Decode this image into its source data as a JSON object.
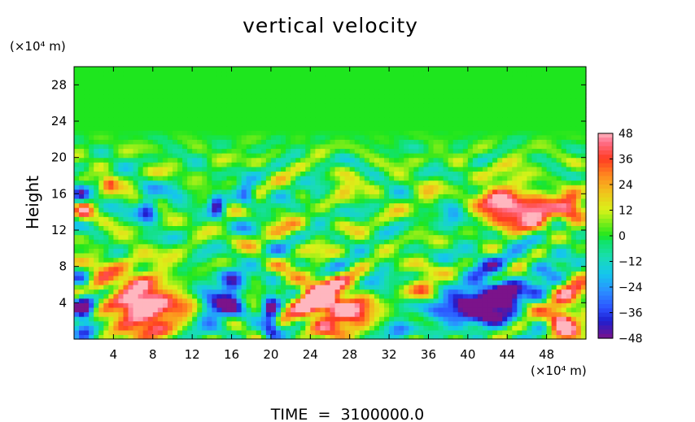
{
  "chart_data": {
    "type": "heatmap",
    "title": "vertical velocity",
    "ylabel": "Height",
    "y_unit": "(×10⁴ m)",
    "x_unit": "(×10⁴ m)",
    "xlim": [
      0,
      52
    ],
    "ylim": [
      0,
      30
    ],
    "x_ticks": [
      4,
      8,
      12,
      16,
      20,
      24,
      28,
      32,
      36,
      40,
      44,
      48
    ],
    "y_ticks": [
      4,
      8,
      12,
      16,
      20,
      24,
      28
    ],
    "colorbar": {
      "min": -48,
      "max": 48,
      "ticks": [
        48,
        36,
        24,
        12,
        0,
        -12,
        -24,
        -36,
        -48
      ],
      "tick_labels": [
        "48",
        "36",
        "24",
        "12",
        "0",
        "−12",
        "−24",
        "−36",
        "−48"
      ]
    },
    "grid": false,
    "footer": "TIME  =  3100000.0",
    "features": [
      {
        "x": 7.0,
        "y": 3.6,
        "sx": 2.3,
        "sy": 2.2,
        "v": 62
      },
      {
        "x": 26.0,
        "y": 3.6,
        "sx": 2.4,
        "sy": 1.8,
        "v": 54
      },
      {
        "x": 24.5,
        "y": 5.3,
        "sx": 1.3,
        "sy": 1.2,
        "v": 30
      },
      {
        "x": 49.5,
        "y": 2.4,
        "sx": 1.0,
        "sy": 1.4,
        "v": 54
      },
      {
        "x": 43.5,
        "y": 14.8,
        "sx": 1.7,
        "sy": 1.6,
        "v": 52
      },
      {
        "x": 47.0,
        "y": 14.0,
        "sx": 1.4,
        "sy": 1.2,
        "v": 46
      },
      {
        "x": 50.5,
        "y": 14.6,
        "sx": 1.0,
        "sy": 1.2,
        "v": 44
      },
      {
        "x": 41.5,
        "y": 4.0,
        "sx": 1.7,
        "sy": 1.8,
        "v": -62
      },
      {
        "x": 44.0,
        "y": 4.6,
        "sx": 1.0,
        "sy": 1.2,
        "v": -52
      },
      {
        "x": 20.0,
        "y": 2.6,
        "sx": 0.6,
        "sy": 2.0,
        "v": -48
      },
      {
        "x": 1.0,
        "y": 3.4,
        "sx": 0.8,
        "sy": 2.3,
        "v": -46
      },
      {
        "x": 16.0,
        "y": 5.2,
        "sx": 0.9,
        "sy": 1.6,
        "v": -46
      },
      {
        "x": 7.5,
        "y": 14.4,
        "sx": 0.7,
        "sy": 1.1,
        "v": -40
      },
      {
        "x": 14.5,
        "y": 14.7,
        "sx": 0.5,
        "sy": 1.0,
        "v": -40
      },
      {
        "x": 17.5,
        "y": 16.0,
        "sx": 0.6,
        "sy": 1.0,
        "v": -34
      },
      {
        "x": 38.0,
        "y": 3.2,
        "sx": 1.6,
        "sy": 1.0,
        "v": -38
      },
      {
        "x": 33.0,
        "y": 1.2,
        "sx": 0.9,
        "sy": 0.8,
        "v": -30
      },
      {
        "x": 14.0,
        "y": 3.2,
        "sx": 1.2,
        "sy": 1.6,
        "v": -34
      },
      {
        "x": 11.5,
        "y": 3.4,
        "sx": 1.2,
        "sy": 1.3,
        "v": 14
      },
      {
        "x": 2.0,
        "y": 6.5,
        "sx": 1.2,
        "sy": 1.2,
        "v": 24
      },
      {
        "x": 5.5,
        "y": 8.3,
        "sx": 2.5,
        "sy": 0.6,
        "v": 16
      },
      {
        "x": 29.0,
        "y": 2.5,
        "sx": 1.0,
        "sy": 1.0,
        "v": 20
      },
      {
        "x": 35.5,
        "y": 6.2,
        "sx": 1.0,
        "sy": 1.4,
        "v": 22
      },
      {
        "x": 51.0,
        "y": 5.2,
        "sx": 1.2,
        "sy": 2.0,
        "v": 20
      },
      {
        "x": 47.5,
        "y": 6.5,
        "sx": 1.5,
        "sy": 1.2,
        "v": -22
      },
      {
        "x": 38.5,
        "y": 13.5,
        "sx": 0.9,
        "sy": 1.0,
        "v": -24
      },
      {
        "x": 49.5,
        "y": 10.0,
        "sx": 1.5,
        "sy": 1.0,
        "v": -14
      },
      {
        "x": 27.5,
        "y": 16.5,
        "sx": 0.8,
        "sy": 0.7,
        "v": 22
      },
      {
        "x": 3.5,
        "y": 17.2,
        "sx": 0.6,
        "sy": 0.6,
        "v": 34
      },
      {
        "x": 1.0,
        "y": 14.0,
        "sx": 0.6,
        "sy": 0.8,
        "v": 28
      },
      {
        "x": 0.6,
        "y": 16.0,
        "sx": 0.6,
        "sy": 0.8,
        "v": -30
      },
      {
        "x": 10.5,
        "y": 16.0,
        "sx": 0.8,
        "sy": 0.6,
        "v": -18
      },
      {
        "x": 24.5,
        "y": 15.5,
        "sx": 0.7,
        "sy": 0.7,
        "v": -18
      },
      {
        "x": 36.0,
        "y": 15.5,
        "sx": 0.8,
        "sy": 0.7,
        "v": 18
      },
      {
        "x": 42.0,
        "y": 9.0,
        "sx": 2.0,
        "sy": 0.9,
        "v": -20
      },
      {
        "x": 13.0,
        "y": 7.2,
        "sx": 1.2,
        "sy": 0.6,
        "v": -12
      },
      {
        "x": 31.0,
        "y": 6.5,
        "sx": 1.0,
        "sy": 1.0,
        "v": -16
      },
      {
        "x": 22.0,
        "y": 12.5,
        "sx": 1.4,
        "sy": 0.6,
        "v": 12
      },
      {
        "x": 45.0,
        "y": 19.5,
        "sx": 2.0,
        "sy": 0.5,
        "v": 10
      }
    ],
    "colors": {
      "-48": "#7b138a",
      "-40": "#1e1ecf",
      "-34": "#2c52ff",
      "-26": "#2b8fff",
      "-18": "#14c6ee",
      "-10": "#19ddb1",
      "-3": "#10e36c",
      "0": "#1ee61e",
      "6": "#7ced19",
      "12": "#d9f219",
      "20": "#f0c51b",
      "28": "#ff8b1f",
      "36": "#ff3b22",
      "44": "#ff6f8c",
      "48": "#ffb6bf"
    }
  }
}
